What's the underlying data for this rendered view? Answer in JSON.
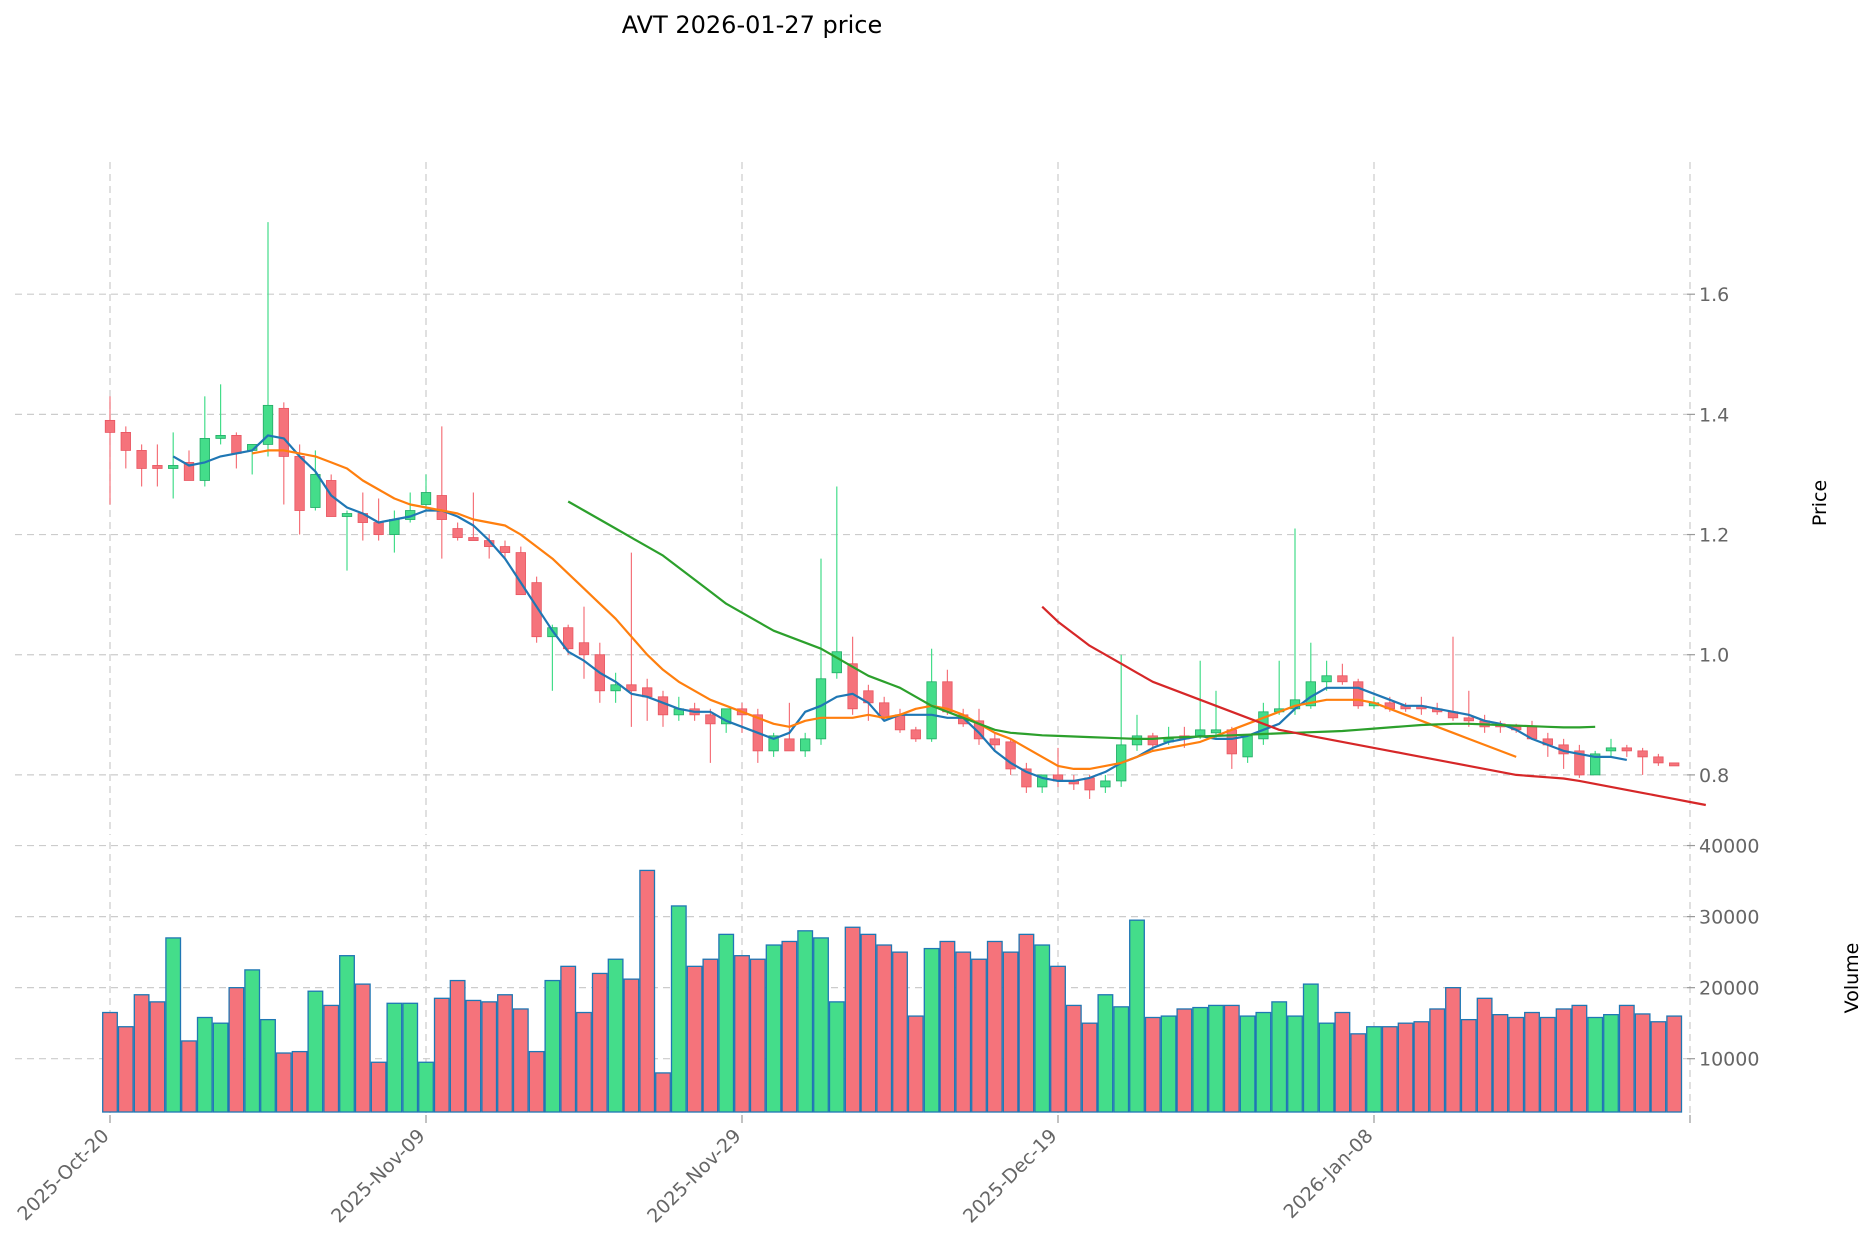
{
  "chart_data": {
    "type": "candlestick",
    "title": "AVT  2026-01-27  price",
    "price_axis": {
      "label": "Price",
      "range": [
        0.7,
        1.82
      ],
      "ticks": [
        0.8,
        1.0,
        1.2,
        1.4,
        1.6
      ],
      "tick_labels": [
        "0.8",
        "1.0",
        "1.2",
        "1.4",
        "1.6"
      ]
    },
    "volume_axis": {
      "label": "Volume",
      "range": [
        2500,
        40500
      ],
      "ticks": [
        10000,
        20000,
        30000,
        40000
      ],
      "tick_labels": [
        "10000",
        "20000",
        "30000",
        "40000"
      ]
    },
    "x_axis": {
      "tick_labels": [
        "2025-Oct-20",
        "2025-Nov-09",
        "2025-Nov-29",
        "2025-Dec-19",
        "2026-Jan-08"
      ],
      "tick_index": [
        0,
        20,
        40,
        60,
        80
      ],
      "count": 100
    },
    "colors": {
      "up": "#44dd8a",
      "down": "#f5737b",
      "edge_up": "#22aa66",
      "edge_down": "#e85560",
      "vol_edge": "#1f77b4",
      "ma_blue": "#1f77b4",
      "ma_orange": "#ff7f0e",
      "ma_green": "#2ca02c",
      "ma_red": "#d62728"
    },
    "ohlc": [
      [
        1.39,
        1.43,
        1.25,
        1.37
      ],
      [
        1.37,
        1.38,
        1.31,
        1.34
      ],
      [
        1.34,
        1.35,
        1.28,
        1.31
      ],
      [
        1.315,
        1.35,
        1.28,
        1.31
      ],
      [
        1.31,
        1.37,
        1.26,
        1.315
      ],
      [
        1.32,
        1.34,
        1.29,
        1.29
      ],
      [
        1.29,
        1.43,
        1.28,
        1.36
      ],
      [
        1.36,
        1.45,
        1.35,
        1.365
      ],
      [
        1.365,
        1.37,
        1.31,
        1.335
      ],
      [
        1.34,
        1.35,
        1.3,
        1.35
      ],
      [
        1.35,
        1.72,
        1.33,
        1.415
      ],
      [
        1.41,
        1.42,
        1.25,
        1.33
      ],
      [
        1.33,
        1.35,
        1.2,
        1.24
      ],
      [
        1.245,
        1.34,
        1.24,
        1.3
      ],
      [
        1.29,
        1.3,
        1.23,
        1.23
      ],
      [
        1.23,
        1.24,
        1.14,
        1.235
      ],
      [
        1.235,
        1.27,
        1.19,
        1.22
      ],
      [
        1.22,
        1.26,
        1.19,
        1.2
      ],
      [
        1.2,
        1.24,
        1.17,
        1.225
      ],
      [
        1.225,
        1.27,
        1.22,
        1.24
      ],
      [
        1.25,
        1.3,
        1.24,
        1.27
      ],
      [
        1.265,
        1.38,
        1.16,
        1.225
      ],
      [
        1.21,
        1.22,
        1.19,
        1.195
      ],
      [
        1.195,
        1.27,
        1.19,
        1.19
      ],
      [
        1.19,
        1.2,
        1.16,
        1.18
      ],
      [
        1.18,
        1.19,
        1.16,
        1.17
      ],
      [
        1.17,
        1.18,
        1.1,
        1.1
      ],
      [
        1.12,
        1.13,
        1.02,
        1.03
      ],
      [
        1.03,
        1.05,
        0.94,
        1.045
      ],
      [
        1.045,
        1.05,
        1.0,
        1.01
      ],
      [
        1.02,
        1.08,
        0.96,
        1.0
      ],
      [
        1.0,
        1.02,
        0.92,
        0.94
      ],
      [
        0.94,
        0.97,
        0.92,
        0.95
      ],
      [
        0.95,
        1.17,
        0.88,
        0.94
      ],
      [
        0.945,
        0.96,
        0.89,
        0.93
      ],
      [
        0.93,
        0.94,
        0.88,
        0.9
      ],
      [
        0.9,
        0.93,
        0.89,
        0.91
      ],
      [
        0.91,
        0.92,
        0.89,
        0.9
      ],
      [
        0.9,
        0.91,
        0.82,
        0.885
      ],
      [
        0.885,
        0.91,
        0.87,
        0.91
      ],
      [
        0.91,
        0.92,
        0.87,
        0.9
      ],
      [
        0.9,
        0.91,
        0.82,
        0.84
      ],
      [
        0.84,
        0.87,
        0.83,
        0.865
      ],
      [
        0.86,
        0.92,
        0.84,
        0.84
      ],
      [
        0.84,
        0.87,
        0.83,
        0.86
      ],
      [
        0.86,
        1.16,
        0.85,
        0.96
      ],
      [
        0.97,
        1.28,
        0.96,
        1.005
      ],
      [
        0.985,
        1.03,
        0.9,
        0.91
      ],
      [
        0.94,
        0.95,
        0.89,
        0.92
      ],
      [
        0.92,
        0.93,
        0.89,
        0.895
      ],
      [
        0.9,
        0.91,
        0.87,
        0.875
      ],
      [
        0.875,
        0.88,
        0.855,
        0.86
      ],
      [
        0.86,
        1.01,
        0.855,
        0.955
      ],
      [
        0.955,
        0.975,
        0.9,
        0.905
      ],
      [
        0.9,
        0.91,
        0.88,
        0.885
      ],
      [
        0.89,
        0.91,
        0.85,
        0.86
      ],
      [
        0.86,
        0.87,
        0.84,
        0.85
      ],
      [
        0.855,
        0.86,
        0.8,
        0.81
      ],
      [
        0.81,
        0.82,
        0.77,
        0.78
      ],
      [
        0.78,
        0.8,
        0.77,
        0.8
      ],
      [
        0.8,
        0.845,
        0.78,
        0.79
      ],
      [
        0.79,
        0.8,
        0.775,
        0.785
      ],
      [
        0.795,
        0.8,
        0.76,
        0.775
      ],
      [
        0.78,
        0.8,
        0.77,
        0.79
      ],
      [
        0.79,
        1.0,
        0.78,
        0.85
      ],
      [
        0.85,
        0.9,
        0.84,
        0.865
      ],
      [
        0.865,
        0.87,
        0.84,
        0.85
      ],
      [
        0.855,
        0.88,
        0.85,
        0.86
      ],
      [
        0.865,
        0.88,
        0.845,
        0.86
      ],
      [
        0.865,
        0.99,
        0.86,
        0.875
      ],
      [
        0.87,
        0.94,
        0.86,
        0.875
      ],
      [
        0.875,
        0.88,
        0.81,
        0.835
      ],
      [
        0.83,
        0.86,
        0.82,
        0.865
      ],
      [
        0.86,
        0.92,
        0.85,
        0.905
      ],
      [
        0.905,
        0.99,
        0.9,
        0.91
      ],
      [
        0.91,
        1.21,
        0.9,
        0.925
      ],
      [
        0.915,
        1.02,
        0.91,
        0.955
      ],
      [
        0.955,
        0.99,
        0.94,
        0.965
      ],
      [
        0.965,
        0.985,
        0.95,
        0.955
      ],
      [
        0.955,
        0.96,
        0.91,
        0.915
      ],
      [
        0.915,
        0.93,
        0.91,
        0.92
      ],
      [
        0.92,
        0.93,
        0.905,
        0.91
      ],
      [
        0.915,
        0.92,
        0.905,
        0.91
      ],
      [
        0.915,
        0.93,
        0.9,
        0.91
      ],
      [
        0.91,
        0.92,
        0.9,
        0.905
      ],
      [
        0.905,
        1.03,
        0.89,
        0.895
      ],
      [
        0.895,
        0.94,
        0.88,
        0.89
      ],
      [
        0.89,
        0.9,
        0.87,
        0.88
      ],
      [
        0.885,
        0.89,
        0.87,
        0.88
      ],
      [
        0.88,
        0.885,
        0.87,
        0.875
      ],
      [
        0.88,
        0.89,
        0.86,
        0.86
      ],
      [
        0.86,
        0.87,
        0.83,
        0.85
      ],
      [
        0.85,
        0.86,
        0.81,
        0.835
      ],
      [
        0.84,
        0.85,
        0.795,
        0.8
      ],
      [
        0.8,
        0.84,
        0.8,
        0.835
      ],
      [
        0.84,
        0.86,
        0.83,
        0.845
      ],
      [
        0.845,
        0.85,
        0.83,
        0.84
      ],
      [
        0.84,
        0.845,
        0.8,
        0.83
      ],
      [
        0.83,
        0.835,
        0.815,
        0.82
      ],
      [
        0.82,
        0.82,
        0.815,
        0.815
      ]
    ],
    "volume": [
      16500,
      14500,
      19000,
      18000,
      27000,
      12500,
      15800,
      15000,
      20000,
      22500,
      15500,
      10800,
      11000,
      19500,
      17500,
      24500,
      20500,
      9500,
      17800,
      17800,
      9500,
      18500,
      21000,
      18200,
      18000,
      19000,
      17000,
      11000,
      21000,
      23000,
      16500,
      22000,
      24000,
      21200,
      36500,
      8000,
      31500,
      23000,
      24000,
      27500,
      24500,
      24000,
      26000,
      26500,
      28000,
      27000,
      18000,
      28500,
      27500,
      26000,
      25000,
      16000,
      25500,
      26500,
      25000,
      24000,
      26500,
      25000,
      27500,
      26000,
      23000,
      17500,
      15000,
      19000,
      17300,
      29500,
      15800,
      16000,
      17000,
      17200,
      17500,
      17500,
      16000,
      16500,
      18000,
      16000,
      20500,
      15000,
      16500,
      13500,
      14500,
      14500,
      15000,
      15200,
      17000,
      20000,
      15500,
      18500,
      16200,
      15800,
      16500,
      15800,
      17000,
      17500,
      15800,
      16200,
      17500,
      16300,
      15200,
      16000
    ],
    "moving_averages": [
      {
        "name": "ma_blue",
        "start": 4,
        "values": [
          1.33,
          1.315,
          1.32,
          1.33,
          1.335,
          1.34,
          1.365,
          1.36,
          1.33,
          1.305,
          1.265,
          1.245,
          1.235,
          1.22,
          1.225,
          1.23,
          1.24,
          1.24,
          1.23,
          1.215,
          1.19,
          1.16,
          1.12,
          1.08,
          1.04,
          1.005,
          0.99,
          0.97,
          0.955,
          0.935,
          0.93,
          0.92,
          0.91,
          0.905,
          0.905,
          0.89,
          0.88,
          0.87,
          0.86,
          0.87,
          0.905,
          0.915,
          0.93,
          0.935,
          0.92,
          0.89,
          0.9,
          0.9,
          0.9,
          0.895,
          0.895,
          0.87,
          0.84,
          0.82,
          0.805,
          0.795,
          0.79,
          0.79,
          0.795,
          0.805,
          0.82,
          0.83,
          0.845,
          0.855,
          0.86,
          0.865,
          0.86,
          0.86,
          0.865,
          0.875,
          0.885,
          0.91,
          0.93,
          0.945,
          0.945,
          0.945,
          0.935,
          0.925,
          0.915,
          0.915,
          0.91,
          0.905,
          0.9,
          0.89,
          0.885,
          0.875,
          0.86,
          0.85,
          0.84,
          0.835,
          0.83,
          0.83,
          0.825
        ]
      },
      {
        "name": "ma_orange",
        "start": 9,
        "values": [
          1.335,
          1.34,
          1.34,
          1.335,
          1.33,
          1.32,
          1.31,
          1.29,
          1.275,
          1.26,
          1.25,
          1.245,
          1.24,
          1.235,
          1.225,
          1.22,
          1.215,
          1.2,
          1.18,
          1.16,
          1.135,
          1.11,
          1.085,
          1.06,
          1.03,
          1.0,
          0.975,
          0.955,
          0.94,
          0.925,
          0.915,
          0.905,
          0.895,
          0.885,
          0.88,
          0.89,
          0.895,
          0.895,
          0.895,
          0.9,
          0.895,
          0.9,
          0.91,
          0.915,
          0.91,
          0.9,
          0.885,
          0.87,
          0.86,
          0.845,
          0.83,
          0.815,
          0.81,
          0.81,
          0.815,
          0.82,
          0.83,
          0.84,
          0.845,
          0.85,
          0.855,
          0.865,
          0.875,
          0.885,
          0.895,
          0.905,
          0.915,
          0.92,
          0.925,
          0.925,
          0.925,
          0.92,
          0.91,
          0.9,
          0.89,
          0.88,
          0.87,
          0.86,
          0.85,
          0.84,
          0.83
        ]
      },
      {
        "name": "ma_green",
        "start": 29,
        "values": [
          1.255,
          1.24,
          1.225,
          1.21,
          1.195,
          1.18,
          1.165,
          1.145,
          1.125,
          1.105,
          1.085,
          1.07,
          1.055,
          1.04,
          1.03,
          1.02,
          1.01,
          0.995,
          0.98,
          0.965,
          0.955,
          0.945,
          0.93,
          0.915,
          0.905,
          0.895,
          0.885,
          0.875,
          0.87,
          0.868,
          0.866,
          0.865,
          0.864,
          0.863,
          0.862,
          0.861,
          0.86,
          0.86,
          0.862,
          0.863,
          0.864,
          0.865,
          0.866,
          0.867,
          0.868,
          0.869,
          0.87,
          0.871,
          0.872,
          0.873,
          0.875,
          0.877,
          0.879,
          0.881,
          0.883,
          0.884,
          0.885,
          0.885,
          0.884,
          0.883,
          0.882,
          0.881,
          0.88,
          0.879,
          0.879,
          0.88
        ]
      },
      {
        "name": "ma_red",
        "start": 59,
        "values": [
          1.08,
          1.055,
          1.035,
          1.015,
          1.0,
          0.985,
          0.97,
          0.955,
          0.945,
          0.935,
          0.925,
          0.915,
          0.905,
          0.895,
          0.885,
          0.875,
          0.87,
          0.865,
          0.86,
          0.855,
          0.85,
          0.845,
          0.84,
          0.835,
          0.83,
          0.825,
          0.82,
          0.815,
          0.81,
          0.805,
          0.8,
          0.798,
          0.796,
          0.794,
          0.79,
          0.785,
          0.78,
          0.775,
          0.77,
          0.765,
          0.76,
          0.755,
          0.75
        ]
      }
    ]
  }
}
